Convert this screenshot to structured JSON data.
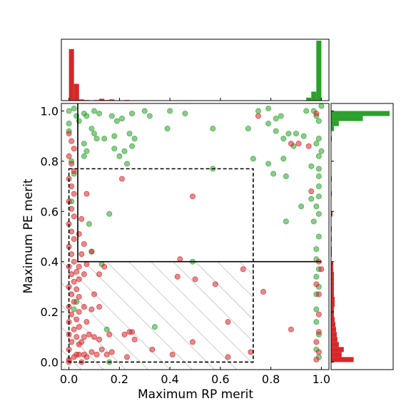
{
  "chart_data": {
    "type": "scatter",
    "title": "",
    "xlabel": "Maximum RP merit",
    "ylabel": "Maximum PE merit",
    "xlim": [
      -0.03,
      1.03
    ],
    "ylim": [
      -0.03,
      1.03
    ],
    "xticks": [
      0.0,
      0.2,
      0.4,
      0.6,
      0.8,
      1.0
    ],
    "yticks": [
      0.0,
      0.2,
      0.4,
      0.6,
      0.8,
      1.0
    ],
    "xtick_labels": [
      "0.0",
      "0.2",
      "0.4",
      "0.6",
      "0.8",
      "1.0"
    ],
    "ytick_labels": [
      "0.0",
      "0.2",
      "0.4",
      "0.6",
      "0.8",
      "1.0"
    ],
    "grid": false,
    "colors": {
      "green": "#2ca02c",
      "red": "#d62728"
    },
    "regions": {
      "solid_box": {
        "x0": 0.035,
        "x1": 1.0,
        "y0": 0.4,
        "y1": 1.03
      },
      "dashed_box": {
        "x0": 0.0,
        "x1": 0.73,
        "y0": 0.0,
        "y1": 0.77
      },
      "hatched_region": {
        "x0": -0.03,
        "x1": 0.73,
        "y0": -0.03,
        "y1": 0.4
      }
    },
    "series": [
      {
        "color": "green",
        "points": [
          [
            0.0,
            1.0
          ],
          [
            0.02,
            1.01
          ],
          [
            0.03,
            0.98
          ],
          [
            0.0,
            0.95
          ],
          [
            0.04,
            0.96
          ],
          [
            0.0,
            0.92
          ],
          [
            0.06,
            0.99
          ],
          [
            0.07,
            0.98
          ],
          [
            0.1,
            1.0
          ],
          [
            0.12,
            0.99
          ],
          [
            0.17,
            0.98
          ],
          [
            0.19,
            0.96
          ],
          [
            0.21,
            0.97
          ],
          [
            0.25,
            0.99
          ],
          [
            0.3,
            1.0
          ],
          [
            0.32,
            0.98
          ],
          [
            0.4,
            1.0
          ],
          [
            0.46,
            0.99
          ],
          [
            0.09,
            0.93
          ],
          [
            0.1,
            0.91
          ],
          [
            0.11,
            0.89
          ],
          [
            0.14,
            0.89
          ],
          [
            0.18,
            0.9
          ],
          [
            0.24,
            0.91
          ],
          [
            0.26,
            0.89
          ],
          [
            0.18,
            0.85
          ],
          [
            0.22,
            0.84
          ],
          [
            0.25,
            0.86
          ],
          [
            0.39,
            0.93
          ],
          [
            0.57,
            0.93
          ],
          [
            0.71,
            0.93
          ],
          [
            0.75,
            1.0
          ],
          [
            0.79,
            1.01
          ],
          [
            0.79,
            0.95
          ],
          [
            0.82,
            0.97
          ],
          [
            0.84,
            0.98
          ],
          [
            0.87,
            0.91
          ],
          [
            0.9,
            0.91
          ],
          [
            0.94,
            1.0
          ],
          [
            0.97,
            1.0
          ],
          [
            0.98,
            0.98
          ],
          [
            0.99,
            0.96
          ],
          [
            1.0,
            1.02
          ],
          [
            0.82,
            0.92
          ],
          [
            0.85,
            0.89
          ],
          [
            0.89,
            0.86
          ],
          [
            0.93,
            0.9
          ],
          [
            0.98,
            0.87
          ],
          [
            0.2,
            0.82
          ],
          [
            0.23,
            0.79
          ],
          [
            0.06,
            0.87
          ],
          [
            0.07,
            0.84
          ],
          [
            0.06,
            0.82
          ],
          [
            0.73,
            0.81
          ],
          [
            0.79,
            0.79
          ],
          [
            0.86,
            0.74
          ],
          [
            0.81,
            0.75
          ],
          [
            0.85,
            0.81
          ],
          [
            0.96,
            0.78
          ],
          [
            0.99,
            0.82
          ],
          [
            0.99,
            0.77
          ],
          [
            0.57,
            0.77
          ],
          [
            0.99,
            0.7
          ],
          [
            0.99,
            0.66
          ],
          [
            0.96,
            0.65
          ],
          [
            0.98,
            0.62
          ],
          [
            0.99,
            0.59
          ],
          [
            0.97,
            0.56
          ],
          [
            0.92,
            0.62
          ],
          [
            0.86,
            0.56
          ],
          [
            0.16,
            0.59
          ],
          [
            0.08,
            0.55
          ],
          [
            0.99,
            0.5
          ],
          [
            0.98,
            0.45
          ],
          [
            0.98,
            0.41
          ],
          [
            0.99,
            0.37
          ],
          [
            0.99,
            0.3
          ],
          [
            0.98,
            0.34
          ],
          [
            0.98,
            0.27
          ],
          [
            0.98,
            0.21
          ],
          [
            0.98,
            0.16
          ],
          [
            0.99,
            0.11
          ],
          [
            0.98,
            0.05
          ],
          [
            0.99,
            0.02
          ],
          [
            0.09,
            0.44
          ],
          [
            0.01,
            0.64
          ],
          [
            0.01,
            0.8
          ],
          [
            0.02,
            0.75
          ],
          [
            0.34,
            0.14
          ],
          [
            0.15,
            0.13
          ],
          [
            0.13,
            0.39
          ],
          [
            0.49,
            0.4
          ],
          [
            0.16,
            0.0
          ],
          [
            0.03,
            0.24
          ],
          [
            0.02,
            0.21
          ],
          [
            0.99,
            0.89
          ],
          [
            1.0,
            0.84
          ],
          [
            0.99,
            0.74
          ]
        ]
      },
      {
        "color": "red",
        "points": [
          [
            0.0,
            0.05
          ],
          [
            0.01,
            0.08
          ],
          [
            0.0,
            0.11
          ],
          [
            0.02,
            0.13
          ],
          [
            0.0,
            0.16
          ],
          [
            0.01,
            0.19
          ],
          [
            0.0,
            0.22
          ],
          [
            0.02,
            0.24
          ],
          [
            0.01,
            0.27
          ],
          [
            0.0,
            0.3
          ],
          [
            0.02,
            0.32
          ],
          [
            0.01,
            0.35
          ],
          [
            0.0,
            0.38
          ],
          [
            0.02,
            0.4
          ],
          [
            0.01,
            0.43
          ],
          [
            0.0,
            0.46
          ],
          [
            0.02,
            0.49
          ],
          [
            0.01,
            0.52
          ],
          [
            0.0,
            0.55
          ],
          [
            0.02,
            0.58
          ],
          [
            0.01,
            0.61
          ],
          [
            0.0,
            0.64
          ],
          [
            0.02,
            0.67
          ],
          [
            0.01,
            0.7
          ],
          [
            0.0,
            0.73
          ],
          [
            0.02,
            0.76
          ],
          [
            0.01,
            0.79
          ],
          [
            0.0,
            0.82
          ],
          [
            0.02,
            0.85
          ],
          [
            0.01,
            0.88
          ],
          [
            0.0,
            0.91
          ],
          [
            0.03,
            0.03
          ],
          [
            0.03,
            0.1
          ],
          [
            0.03,
            0.17
          ],
          [
            0.03,
            0.29
          ],
          [
            0.03,
            0.36
          ],
          [
            0.04,
            0.03
          ],
          [
            0.04,
            0.07
          ],
          [
            0.04,
            0.14
          ],
          [
            0.04,
            0.2
          ],
          [
            0.04,
            0.26
          ],
          [
            0.04,
            0.33
          ],
          [
            0.04,
            0.38
          ],
          [
            0.0,
            0.01
          ],
          [
            0.0,
            0.0
          ],
          [
            0.02,
            0.02
          ],
          [
            0.05,
            0.0
          ],
          [
            0.06,
            0.03
          ],
          [
            0.07,
            0.02
          ],
          [
            0.09,
            0.04
          ],
          [
            0.11,
            0.03
          ],
          [
            0.13,
            0.05
          ],
          [
            0.15,
            0.03
          ],
          [
            0.17,
            0.04
          ],
          [
            0.05,
            0.08
          ],
          [
            0.06,
            0.1
          ],
          [
            0.08,
            0.11
          ],
          [
            0.1,
            0.1
          ],
          [
            0.12,
            0.09
          ],
          [
            0.16,
            0.11
          ],
          [
            0.24,
            0.12
          ],
          [
            0.25,
            0.12
          ],
          [
            0.06,
            0.22
          ],
          [
            0.07,
            0.16
          ],
          [
            0.09,
            0.21
          ],
          [
            0.1,
            0.27
          ],
          [
            0.12,
            0.22
          ],
          [
            0.06,
            0.35
          ],
          [
            0.12,
            0.35
          ],
          [
            0.14,
            0.38
          ],
          [
            0.22,
            0.11
          ],
          [
            0.23,
            0.02
          ],
          [
            0.26,
            0.09
          ],
          [
            0.33,
            0.05
          ],
          [
            0.41,
            0.03
          ],
          [
            0.44,
            0.41
          ],
          [
            0.43,
            0.34
          ],
          [
            0.5,
            0.33
          ],
          [
            0.49,
            0.08
          ],
          [
            0.58,
            0.31
          ],
          [
            0.63,
            0.16
          ],
          [
            0.63,
            0.02
          ],
          [
            0.69,
            0.37
          ],
          [
            0.72,
            0.04
          ],
          [
            0.77,
            0.28
          ],
          [
            0.88,
            0.13
          ],
          [
            0.07,
            0.67
          ],
          [
            0.09,
            0.44
          ],
          [
            0.21,
            0.73
          ],
          [
            0.49,
            0.66
          ],
          [
            0.75,
            0.98
          ],
          [
            0.88,
            0.87
          ],
          [
            0.91,
            0.87
          ],
          [
            0.95,
            0.86
          ],
          [
            0.98,
            0.99
          ],
          [
            0.96,
            0.68
          ],
          [
            0.99,
            0.4
          ],
          [
            1.0,
            0.37
          ],
          [
            0.98,
            0.31
          ],
          [
            0.99,
            0.27
          ],
          [
            0.99,
            0.19
          ],
          [
            0.99,
            0.12
          ],
          [
            0.98,
            0.08
          ],
          [
            0.99,
            0.04
          ],
          [
            0.98,
            0.01
          ],
          [
            0.07,
            0.39
          ],
          [
            0.05,
            0.43
          ],
          [
            0.06,
            0.47
          ],
          [
            0.04,
            0.51
          ],
          [
            0.05,
            0.57
          ]
        ]
      }
    ],
    "top_histogram": {
      "bins": 50,
      "range": [
        0.0,
        1.0
      ],
      "red_counts": [
        86,
        28,
        2,
        1,
        0,
        1,
        3,
        1,
        2,
        0,
        0,
        1,
        0,
        0,
        0,
        0,
        0,
        0,
        0,
        0,
        0,
        0,
        0,
        0,
        0,
        0,
        0,
        0,
        0,
        0,
        0,
        0,
        0,
        0,
        0,
        0,
        0,
        0,
        0,
        0,
        0,
        0,
        0,
        0,
        0,
        0,
        0,
        0,
        0,
        5
      ],
      "green_counts": [
        0,
        0,
        0,
        0,
        0,
        0,
        0,
        0,
        0,
        0,
        0,
        0,
        0,
        0,
        0,
        0,
        0,
        0,
        0,
        0,
        0,
        0,
        0,
        0,
        0,
        0,
        0,
        0,
        0,
        0,
        0,
        0,
        0,
        0,
        0,
        0,
        0,
        0,
        0,
        0,
        0,
        0,
        0,
        0,
        0,
        0,
        0,
        5,
        15,
        100
      ]
    },
    "right_histogram": {
      "bins": 50,
      "range": [
        0.0,
        1.0
      ],
      "red_counts": [
        32,
        15,
        18,
        11,
        9,
        8,
        7,
        6,
        5,
        4,
        4,
        5,
        5,
        4,
        4,
        4,
        4,
        4,
        3,
        3,
        0,
        1,
        1,
        0,
        1,
        0,
        1,
        0,
        0,
        2,
        0,
        0,
        0,
        1,
        0,
        0,
        1,
        0,
        0,
        0,
        0,
        0,
        0,
        0,
        1,
        0,
        0,
        1,
        2,
        2
      ],
      "green_counts": [
        0,
        0,
        0,
        0,
        0,
        0,
        0,
        0,
        0,
        0,
        0,
        0,
        0,
        0,
        0,
        0,
        0,
        0,
        0,
        0,
        0,
        0,
        0,
        0,
        0,
        0,
        0,
        0,
        0,
        0,
        0,
        0,
        0,
        0,
        0,
        0,
        0,
        0,
        0,
        0,
        0,
        0,
        0,
        0,
        0,
        0,
        4,
        11,
        45,
        83
      ]
    }
  }
}
